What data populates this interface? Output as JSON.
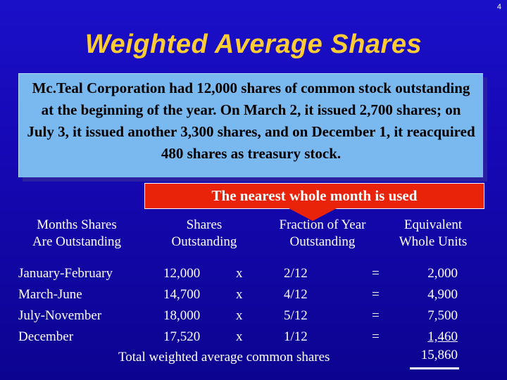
{
  "slide_number": "4",
  "title": "Weighted Average Shares",
  "problem_text": "Mc.Teal Corporation had 12,000 shares of common stock outstanding  at the beginning of the year.  On March 2, it issued 2,700 shares; on July 3, it issued another 3,300 shares, and on December 1, it reacquired 480 shares as treasury stock.",
  "callout": "The nearest whole month is used",
  "headers": {
    "col1": [
      "Months Shares",
      "Are Outstanding"
    ],
    "col2": [
      "Shares",
      "Outstanding"
    ],
    "col3": [
      "Fraction of Year",
      "Outstanding"
    ],
    "col4": [
      "Equivalent",
      "Whole Units"
    ]
  },
  "rows": [
    {
      "period": "January-February",
      "shares": "12,000",
      "times": "x",
      "fraction": "2/12",
      "equals": "=",
      "equivalent": "2,000"
    },
    {
      "period": "March-June",
      "shares": "14,700",
      "times": "x",
      "fraction": "4/12",
      "equals": "=",
      "equivalent": "4,900"
    },
    {
      "period": "July-November",
      "shares": "18,000",
      "times": "x",
      "fraction": "5/12",
      "equals": "=",
      "equivalent": "7,500"
    },
    {
      "period": "December",
      "shares": "17,520",
      "times": "x",
      "fraction": "1/12",
      "equals": "=",
      "equivalent": "1,460"
    }
  ],
  "total_label": "Total weighted average common shares",
  "total_value": "15,860",
  "colors": {
    "background": "#1608b4",
    "title": "#ffcc33",
    "problem_box": "#7ab8f0",
    "callout": "#e8230a"
  }
}
